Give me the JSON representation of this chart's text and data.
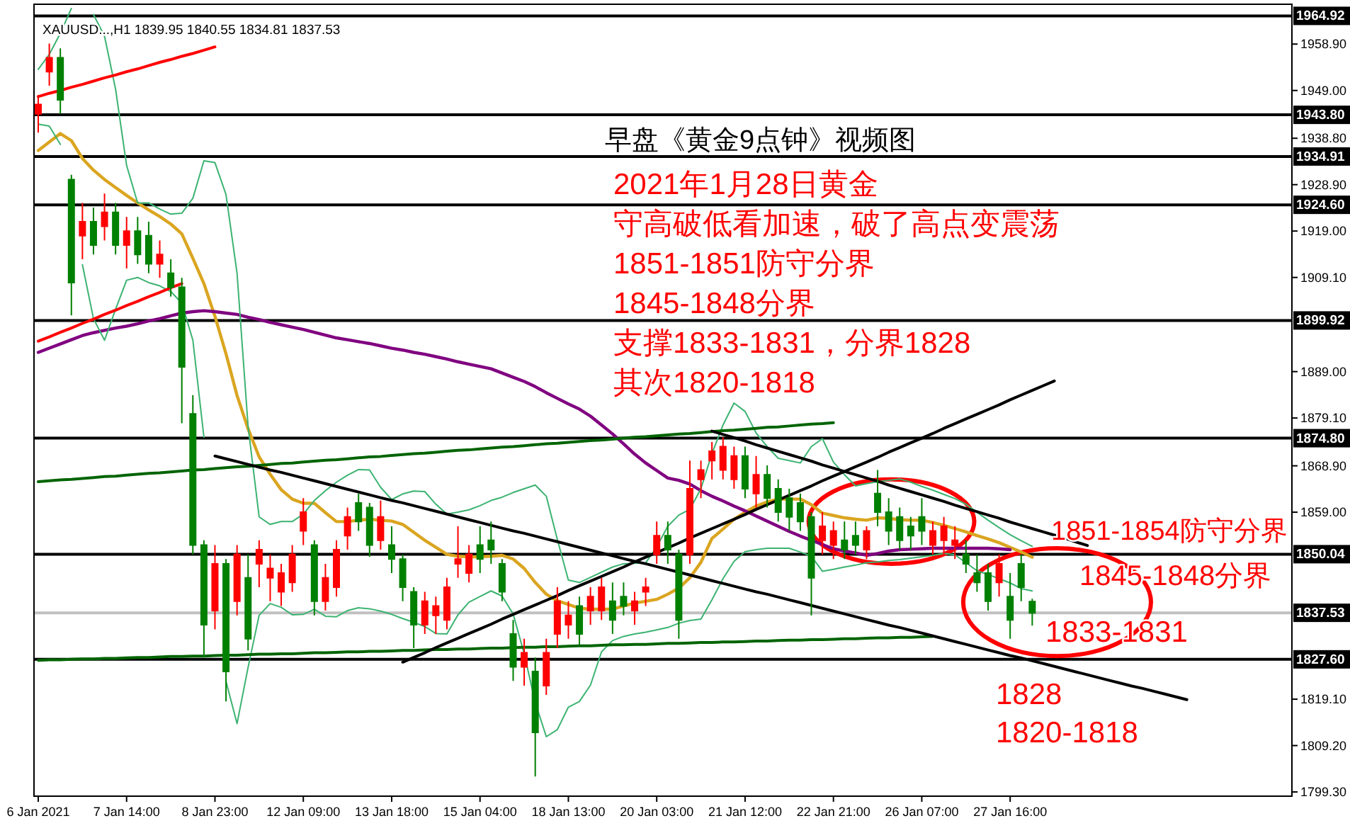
{
  "chart_data": {
    "type": "candlestick",
    "title": "早盘《黄金9点钟》视频图",
    "ylim": [
      1798.4,
      1967.4
    ],
    "categories": [
      "6 Jan 2021",
      null,
      null,
      null,
      null,
      null,
      null,
      null,
      "7 Jan 14:00",
      null,
      null,
      null,
      null,
      null,
      null,
      null,
      "8 Jan 23:00",
      null,
      null,
      null,
      null,
      null,
      null,
      null,
      "12 Jan 09:00",
      null,
      null,
      null,
      null,
      null,
      null,
      null,
      "13 Jan 18:00",
      null,
      null,
      null,
      null,
      null,
      null,
      null,
      "15 Jan 04:00",
      null,
      null,
      null,
      null,
      null,
      null,
      null,
      "18 Jan 13:00",
      null,
      null,
      null,
      null,
      null,
      null,
      null,
      "20 Jan 03:00",
      null,
      null,
      null,
      null,
      null,
      null,
      null,
      "21 Jan 12:00",
      null,
      null,
      null,
      null,
      null,
      null,
      null,
      "22 Jan 21:00",
      null,
      null,
      null,
      null,
      null,
      null,
      null,
      "26 Jan 07:00",
      null,
      null,
      null,
      null,
      null,
      null,
      null,
      "27 Jan 16:00",
      null,
      null,
      null,
      null,
      null,
      null,
      null,
      null,
      null,
      null,
      null,
      null,
      null,
      null,
      null,
      null,
      null,
      null,
      null,
      null,
      null,
      null,
      null,
      null,
      null
    ],
    "yticks": [
      {
        "value": 1799.3,
        "label": "1799.30"
      },
      {
        "value": 1809.2,
        "label": "1809.20"
      },
      {
        "value": 1819.1,
        "label": "1819.10"
      },
      {
        "value": 1859,
        "label": "1859.00"
      },
      {
        "value": 1868.9,
        "label": "1868.90"
      },
      {
        "value": 1879.1,
        "label": "1879.10"
      },
      {
        "value": 1889,
        "label": "1889.00"
      },
      {
        "value": 1909.1,
        "label": "1909.10"
      },
      {
        "value": 1919,
        "label": "1919.00"
      },
      {
        "value": 1928.9,
        "label": "1928.90"
      },
      {
        "value": 1938.8,
        "label": "1938.80"
      },
      {
        "value": 1949,
        "label": "1949.00"
      },
      {
        "value": 1958.9,
        "label": "1958.90"
      }
    ],
    "ref_lines": [
      {
        "axis": "y",
        "value": 1964.92,
        "label": "1964.92",
        "color": "#000000"
      },
      {
        "axis": "y",
        "value": 1943.8,
        "label": "1943.80",
        "color": "#000000"
      },
      {
        "axis": "y",
        "value": 1934.91,
        "label": "1934.91",
        "color": "#000000"
      },
      {
        "axis": "y",
        "value": 1924.6,
        "label": "1924.60",
        "color": "#000000"
      },
      {
        "axis": "y",
        "value": 1899.92,
        "label": "1899.92",
        "color": "#000000"
      },
      {
        "axis": "y",
        "value": 1874.8,
        "label": "1874.80",
        "color": "#000000"
      },
      {
        "axis": "y",
        "value": 1850.04,
        "label": "1850.04",
        "color": "#000000"
      },
      {
        "axis": "y",
        "value": 1827.6,
        "label": "1827.60",
        "color": "#000000"
      },
      {
        "axis": "y",
        "value": 1837.53,
        "label": "1837.53",
        "color": "#c0c0c0"
      }
    ],
    "series": [
      {
        "type": "candlestick",
        "ohlc": [
          [
            1944,
            1948,
            1940,
            1946
          ],
          [
            1953,
            1959,
            1950,
            1956
          ],
          [
            1956,
            1958,
            1944,
            1947
          ],
          [
            1930,
            1931,
            1901,
            1908
          ],
          [
            1918,
            1925,
            1913,
            1921
          ],
          [
            1921,
            1924,
            1914,
            1916
          ],
          [
            1920,
            1927,
            1917,
            1923
          ],
          [
            1923,
            1925,
            1914,
            1916
          ],
          [
            1916,
            1922,
            1911,
            1919
          ],
          [
            1919,
            1922,
            1912,
            1914
          ],
          [
            1918,
            1921,
            1910,
            1912
          ],
          [
            1912,
            1917,
            1909,
            1914
          ],
          [
            1910,
            1913,
            1905,
            1907
          ],
          [
            1907,
            1909,
            1878,
            1890
          ],
          [
            1880,
            1884,
            1850,
            1852
          ],
          [
            1852,
            1853,
            1828,
            1835
          ],
          [
            1838,
            1852,
            1834,
            1848
          ],
          [
            1848,
            1849,
            1818.6,
            1825
          ],
          [
            1840,
            1852,
            1837,
            1850
          ],
          [
            1845,
            1850,
            1829.5,
            1832
          ],
          [
            1848,
            1853,
            1843,
            1851
          ],
          [
            1845,
            1850,
            1840,
            1847
          ],
          [
            1842,
            1848,
            1839,
            1846
          ],
          [
            1844,
            1852,
            1842,
            1850
          ],
          [
            1855,
            1862,
            1852,
            1859
          ],
          [
            1852,
            1853,
            1837,
            1840
          ],
          [
            1840,
            1848,
            1838,
            1845
          ],
          [
            1843,
            1853,
            1841,
            1851
          ],
          [
            1854,
            1860,
            1851,
            1858
          ],
          [
            1861,
            1863,
            1855,
            1857
          ],
          [
            1860,
            1861,
            1849.5,
            1852
          ],
          [
            1853,
            1861.5,
            1851,
            1858
          ],
          [
            1852,
            1856,
            1846,
            1849
          ],
          [
            1849,
            1850,
            1840,
            1843
          ],
          [
            1842,
            1843,
            1830,
            1835
          ],
          [
            1835,
            1842,
            1833,
            1840
          ],
          [
            1837,
            1841,
            1833,
            1839
          ],
          [
            1836,
            1845,
            1834,
            1843
          ],
          [
            1848,
            1856,
            1845,
            1849
          ],
          [
            1846,
            1852,
            1844,
            1850
          ],
          [
            1852,
            1856,
            1846,
            1849
          ],
          [
            1853,
            1857,
            1848,
            1851
          ],
          [
            1848,
            1849,
            1840,
            1842
          ],
          [
            1833,
            1836,
            1823,
            1826
          ],
          [
            1826,
            1832,
            1822,
            1829
          ],
          [
            1825,
            1828,
            1802.6,
            1812
          ],
          [
            1822,
            1832,
            1820,
            1829
          ],
          [
            1833,
            1843,
            1830,
            1840
          ],
          [
            1835,
            1840,
            1832,
            1837
          ],
          [
            1839,
            1841,
            1830.7,
            1833
          ],
          [
            1838,
            1843,
            1835,
            1841
          ],
          [
            1838,
            1845,
            1836,
            1843
          ],
          [
            1840,
            1844,
            1833,
            1836
          ],
          [
            1841,
            1844,
            1837,
            1839
          ],
          [
            1838,
            1842,
            1835,
            1840
          ],
          [
            1842,
            1845,
            1839,
            1843
          ],
          [
            1850,
            1857,
            1848,
            1854
          ],
          [
            1854,
            1857,
            1848,
            1851
          ],
          [
            1850,
            1851,
            1832,
            1836
          ],
          [
            1850,
            1870,
            1848,
            1864
          ],
          [
            1866,
            1870,
            1862,
            1868
          ],
          [
            1870,
            1874,
            1866,
            1872
          ],
          [
            1868,
            1875,
            1866,
            1873
          ],
          [
            1866,
            1873,
            1864,
            1871
          ],
          [
            1871,
            1873,
            1862,
            1864
          ],
          [
            1863,
            1871,
            1860,
            1867
          ],
          [
            1867,
            1869,
            1860,
            1862
          ],
          [
            1864,
            1866,
            1857,
            1859
          ],
          [
            1862,
            1864,
            1855,
            1858
          ],
          [
            1861,
            1863,
            1855,
            1857
          ],
          [
            1858,
            1859,
            1837,
            1845
          ],
          [
            1853,
            1859,
            1850,
            1856
          ],
          [
            1852,
            1857,
            1849,
            1855
          ],
          [
            1853,
            1857,
            1849,
            1851
          ],
          [
            1854,
            1857,
            1850,
            1852
          ],
          [
            1851,
            1856,
            1849,
            1855
          ],
          [
            1863,
            1868,
            1856,
            1859
          ],
          [
            1859,
            1862,
            1852,
            1855
          ],
          [
            1858,
            1860,
            1851,
            1853
          ],
          [
            1856,
            1858,
            1851,
            1854
          ],
          [
            1858,
            1862,
            1852,
            1855
          ],
          [
            1852,
            1857,
            1850,
            1855
          ],
          [
            1853,
            1858,
            1850,
            1856
          ],
          [
            1852,
            1856,
            1849,
            1853
          ],
          [
            1850,
            1853,
            1846,
            1848
          ],
          [
            1846,
            1850,
            1842,
            1844
          ],
          [
            1846,
            1848,
            1838,
            1840
          ],
          [
            1844,
            1850,
            1841,
            1848
          ],
          [
            1841,
            1846,
            1832,
            1836
          ],
          [
            1848,
            1850,
            1840,
            1843
          ],
          [
            1839.95,
            1840.55,
            1834.81,
            1837.53
          ],
          null,
          null,
          null,
          null,
          null,
          null,
          null,
          null,
          null,
          null,
          null,
          null,
          null,
          null,
          null,
          null,
          null,
          null,
          null,
          null,
          null,
          null,
          null
        ],
        "colors": [
          "#ff0000",
          "#ff0000",
          "#008000",
          "#008000",
          "#ff0000",
          "#008000",
          "#ff0000",
          "#008000",
          "#ff0000",
          "#008000",
          "#008000",
          "#ff0000",
          "#008000",
          "#008000",
          "#008000",
          "#008000",
          "#ff0000",
          "#008000",
          "#ff0000",
          "#008000",
          "#ff0000",
          "#ff0000",
          "#ff0000",
          "#ff0000",
          "#ff0000",
          "#008000",
          "#ff0000",
          "#ff0000",
          "#ff0000",
          "#008000",
          "#008000",
          "#ff0000",
          "#008000",
          "#008000",
          "#008000",
          "#ff0000",
          "#ff0000",
          "#ff0000",
          "#ff0000",
          "#ff0000",
          "#008000",
          "#008000",
          "#008000",
          "#008000",
          "#ff0000",
          "#008000",
          "#ff0000",
          "#ff0000",
          "#ff0000",
          "#008000",
          "#ff0000",
          "#ff0000",
          "#008000",
          "#008000",
          "#ff0000",
          "#ff0000",
          "#ff0000",
          "#008000",
          "#008000",
          "#ff0000",
          "#ff0000",
          "#ff0000",
          "#ff0000",
          "#ff0000",
          "#008000",
          "#ff0000",
          "#008000",
          "#008000",
          "#008000",
          "#008000",
          "#008000",
          "#ff0000",
          "#ff0000",
          "#008000",
          "#008000",
          "#ff0000",
          "#008000",
          "#008000",
          "#008000",
          "#008000",
          "#008000",
          "#ff0000",
          "#ff0000",
          "#ff0000",
          "#008000",
          "#008000",
          "#008000",
          "#ff0000",
          "#008000",
          "#008000",
          "#008000",
          null,
          null,
          null,
          null,
          null,
          null,
          null,
          null,
          null,
          null,
          null,
          null,
          null,
          null,
          null,
          null,
          null,
          null,
          null,
          null,
          null,
          null,
          null
        ]
      },
      {
        "type": "line",
        "color": "#daa520",
        "values": [
          1936.2,
          1938,
          1939.8,
          1938.3,
          1934.5,
          1932,
          1930,
          1928.3,
          1926.6,
          1925,
          1923.5,
          1922.1,
          1920.5,
          1918.4,
          1913.2,
          1907.8,
          1900.8,
          1892.8,
          1883.9,
          1876.8,
          1870.8,
          1867.1,
          1863.8,
          1861.8,
          1860.9,
          1860.9,
          1858.9,
          1857,
          1857,
          1857.3,
          1857.5,
          1857.3,
          1857.1,
          1856.4,
          1854.7,
          1853,
          1851.5,
          1850,
          1849.6,
          1849.5,
          1849.5,
          1849.6,
          1849.8,
          1849,
          1847,
          1844,
          1841.5,
          1840.1,
          1839.3,
          1838.5,
          1838.3,
          1838.3,
          1838.3,
          1839,
          1839.6,
          1840,
          1840.4,
          1841.5,
          1842.8,
          1845,
          1848.3,
          1853.4,
          1855.4,
          1857.5,
          1859,
          1860.3,
          1861.2,
          1861.8,
          1861.8,
          1861.8,
          1860.6,
          1858.8,
          1858.3,
          1857.8,
          1857.5,
          1857.3,
          1857.8,
          1857.7,
          1857.4,
          1857.3,
          1857.3,
          1856.8,
          1856.2,
          1855.5,
          1854.8,
          1854,
          1853.3,
          1852.5,
          1851.5,
          1850.5,
          1849.4,
          null,
          null,
          null,
          null,
          null,
          null,
          null,
          null,
          null,
          null,
          null,
          null,
          null,
          null,
          null,
          null,
          null,
          null,
          null,
          null,
          null,
          null,
          null
        ]
      },
      {
        "type": "line",
        "color": "#800080",
        "values": [
          1893.1,
          1894,
          1894.9,
          1895.8,
          1896.7,
          1897.3,
          1897.8,
          1898.3,
          1898.7,
          1899.2,
          1899.8,
          1900.3,
          1900.9,
          1901.5,
          1901.8,
          1902,
          1901.8,
          1901.5,
          1901.2,
          1900.6,
          1900.1,
          1899.5,
          1899,
          1898.5,
          1898,
          1897.4,
          1896.8,
          1896.2,
          1895.8,
          1895.4,
          1895,
          1894.5,
          1894,
          1893.6,
          1893.1,
          1892.7,
          1892.2,
          1891.7,
          1891.1,
          1890.6,
          1890.1,
          1889.6,
          1888.7,
          1887.8,
          1886.9,
          1885.8,
          1884.5,
          1883.3,
          1882.1,
          1881,
          1879.5,
          1877.6,
          1875.7,
          1873.6,
          1871.4,
          1869.5,
          1867.9,
          1866.3,
          1865.8,
          1865,
          1863.6,
          1862.4,
          1861.4,
          1860.3,
          1859.3,
          1858.2,
          1857.1,
          1856,
          1854.9,
          1853.9,
          1853,
          1852.1,
          1851.2,
          1850.7,
          1850.3,
          1849.8,
          1850.2,
          1850.7,
          1851,
          1851.1,
          1851.2,
          1851.3,
          1851.3,
          1851.3,
          1851.3,
          1851.3,
          1851.3,
          1851.2,
          1851,
          null,
          null,
          null,
          null,
          null,
          null,
          null,
          null,
          null,
          null,
          null,
          null,
          null,
          null,
          null,
          null,
          null,
          null,
          null,
          null,
          null,
          null,
          null,
          null,
          null
        ]
      },
      {
        "type": "line",
        "color": "#3cb371",
        "values": [
          1953.5,
          1956.7,
          1961.2,
          1966.5,
          null,
          1965.2,
          1960.6,
          1949.3,
          1933,
          1925,
          1925,
          1923.7,
          1922.6,
          1922.8,
          1926,
          1934,
          1933.6,
          1926.8,
          1910,
          1877.3,
          1858,
          1856.4,
          1857,
          1857,
          1858.6,
          1861.5,
          1863.6,
          1865.4,
          1866.9,
          1868.1,
          1868,
          1864.3,
          1861.7,
          1862.9,
          1863.5,
          1863.4,
          1860.7,
          1858.6,
          1859,
          1859.5,
          1860.4,
          1861.5,
          1862.2,
          1863.2,
          1864,
          1864.8,
          1862.4,
          1853.2,
          1844.5,
          1844,
          1845.1,
          1846.2,
          1847.3,
          1848,
          1848.1,
          1848.2,
          1851.6,
          1856,
          1858.4,
          1859.6,
          1864,
          1871.5,
          1877.6,
          1882.3,
          1880.5,
          1875.9,
          1873,
          1870.5,
          1870,
          1869.5,
          1873,
          1874.7,
          1869.7,
          1867,
          1864.6,
          1865.1,
          1865.5,
          1865.8,
          1866.1,
          1865.4,
          1864.5,
          1863.7,
          1862.8,
          1861.9,
          1860.7,
          1859,
          1857.3,
          1855.7,
          1854.2,
          1852.9,
          1851.7,
          null,
          null,
          null,
          null,
          null,
          null,
          null,
          null,
          null,
          null,
          null,
          null,
          null,
          null,
          null,
          null,
          null,
          null,
          null,
          null,
          null,
          null,
          null
        ]
      },
      {
        "type": "line",
        "color": "#3cb371",
        "values": [
          1941.8,
          1941.4,
          1937.5,
          null,
          1911.8,
          1900.3,
          1895.7,
          1902.3,
          1908.5,
          1909.1,
          1908,
          1907.3,
          1906.1,
          1903.6,
          1895.7,
          1875,
          null,
          1822.9,
          1813.9,
          1825.9,
          1837,
          1839.5,
          1838.7,
          1837.1,
          1837.2,
          1838.3,
          1836.8,
          1836.7,
          1838,
          1838.6,
          1838.4,
          1837.9,
          1837.2,
          1836.3,
          1835.5,
          1834.6,
          1833.1,
          1833,
          1837.1,
          1839.8,
          1841,
          1842.2,
          1841.1,
          1837.3,
          1828.8,
          1818.4,
          1811.1,
          1812.6,
          1817.4,
          1818.6,
          1822.1,
          1829.2,
          1831.6,
          1832.5,
          1833,
          1833.4,
          1833.9,
          1834.4,
          1835.3,
          1835.9,
          1836.2,
          1840.3,
          1844.8,
          1848.5,
          1850.6,
          1851,
          1851.3,
          1851.3,
          1851.3,
          1850.5,
          1849.6,
          1846.4,
          1846.8,
          1847.3,
          1847.7,
          1848.2,
          1848.4,
          1848.7,
          1848.9,
          1849.2,
          1849.5,
          1849.8,
          1850.2,
          1849.9,
          1848.2,
          1846.5,
          1845.7,
          1844.8,
          1843.9,
          1842.7,
          1842.2,
          null,
          null,
          null,
          null,
          null,
          null,
          null,
          null,
          null,
          null,
          null,
          null,
          null,
          null,
          null,
          null,
          null,
          null,
          null,
          null,
          null,
          null,
          null
        ]
      },
      {
        "type": "line",
        "color": "#ff0000",
        "values": [
          1947.7,
          1948.4,
          1949.0,
          1949.7,
          1950.3,
          1951.0,
          1951.7,
          1952.3,
          1953.0,
          1953.6,
          1954.3,
          1955.0,
          1955.6,
          1956.3,
          1956.9,
          1957.6,
          1958.3,
          null,
          null,
          null,
          null,
          null,
          null,
          null,
          null,
          null,
          null,
          null,
          null,
          null,
          null,
          null,
          null,
          null,
          null,
          null,
          null,
          null,
          null,
          null,
          null,
          null,
          null,
          null,
          null,
          null,
          null,
          null,
          null,
          null,
          null,
          null,
          null,
          null,
          null,
          null,
          null,
          null,
          null,
          null,
          null,
          null,
          null,
          null,
          null,
          null,
          null,
          null,
          null,
          null,
          null,
          null,
          null,
          null,
          null,
          null,
          null,
          null,
          null,
          null,
          null,
          null,
          null,
          null,
          null,
          null,
          null,
          null,
          null,
          null,
          null,
          null,
          null,
          null,
          null,
          null,
          null,
          null,
          null,
          null,
          null,
          null,
          null,
          null,
          null,
          null,
          null,
          null,
          null,
          null,
          null,
          null,
          null,
          null
        ]
      },
      {
        "type": "line",
        "color": "#ff0000",
        "values": [
          1895.5,
          1896.4,
          1897.4,
          1898.3,
          1899.3,
          1900.2,
          1901.2,
          1902.1,
          1903.1,
          1904.0,
          1905.0,
          1905.9,
          1906.9,
          1907.8,
          null,
          null,
          null,
          null,
          null,
          null,
          null,
          null,
          null,
          null,
          null,
          null,
          null,
          null,
          null,
          null,
          null,
          null,
          null,
          null,
          null,
          null,
          null,
          null,
          null,
          null,
          null,
          null,
          null,
          null,
          null,
          null,
          null,
          null,
          null,
          null,
          null,
          null,
          null,
          null,
          null,
          null,
          null,
          null,
          null,
          null,
          null,
          null,
          null,
          null,
          null,
          null,
          null,
          null,
          null,
          null,
          null,
          null,
          null,
          null,
          null,
          null,
          null,
          null,
          null,
          null,
          null,
          null,
          null,
          null,
          null,
          null,
          null,
          null,
          null,
          null,
          null,
          null,
          null,
          null,
          null,
          null,
          null,
          null,
          null,
          null,
          null,
          null,
          null,
          null,
          null,
          null,
          null,
          null,
          null,
          null,
          null,
          null,
          null,
          null
        ]
      },
      {
        "type": "line",
        "color": "#006400",
        "values": [
          1865.5,
          1865.7,
          1865.9,
          1866.0,
          1866.2,
          1866.4,
          1866.6,
          1866.7,
          1866.9,
          1867.1,
          1867.3,
          1867.4,
          1867.6,
          1867.8,
          1868.0,
          1868.1,
          1868.3,
          1868.5,
          1868.7,
          1868.8,
          1869.0,
          1869.2,
          1869.4,
          1869.5,
          1869.7,
          1869.9,
          1870.1,
          1870.2,
          1870.4,
          1870.6,
          1870.8,
          1870.9,
          1871.1,
          1871.3,
          1871.5,
          1871.6,
          1871.8,
          1872.0,
          1872.2,
          1872.3,
          1872.5,
          1872.7,
          1872.9,
          1873.0,
          1873.2,
          1873.4,
          1873.6,
          1873.7,
          1873.9,
          1874.1,
          1874.3,
          1874.4,
          1874.6,
          1874.8,
          1875.0,
          1875.1,
          1875.3,
          1875.5,
          1875.7,
          1875.8,
          1876.0,
          1876.2,
          1876.4,
          1876.5,
          1876.7,
          1876.9,
          1877.1,
          1877.2,
          1877.4,
          1877.6,
          1877.8,
          1877.9,
          1878.1,
          null,
          null,
          null,
          null,
          null,
          null,
          null,
          null,
          null,
          null,
          null,
          null,
          null,
          null,
          null,
          null,
          null,
          null,
          null,
          null,
          null,
          null,
          null,
          null,
          null,
          null,
          null,
          null,
          null,
          null,
          null,
          null,
          null,
          null,
          null,
          null,
          null,
          null,
          null,
          null,
          null
        ]
      },
      {
        "type": "line",
        "color": "#006400",
        "values": [
          1827.4,
          1827.5,
          1827.5,
          1827.6,
          1827.7,
          1827.7,
          1827.8,
          1827.8,
          1827.9,
          1828.0,
          1828.0,
          1828.1,
          1828.2,
          1828.2,
          1828.3,
          1828.3,
          1828.4,
          1828.5,
          1828.5,
          1828.6,
          1828.7,
          1828.7,
          1828.8,
          1828.8,
          1828.9,
          1829.0,
          1829.0,
          1829.1,
          1829.2,
          1829.2,
          1829.3,
          1829.3,
          1829.4,
          1829.5,
          1829.5,
          1829.6,
          1829.7,
          1829.7,
          1829.8,
          1829.8,
          1829.9,
          1830.0,
          1830.0,
          1830.1,
          1830.2,
          1830.2,
          1830.3,
          1830.3,
          1830.4,
          1830.5,
          1830.5,
          1830.6,
          1830.7,
          1830.7,
          1830.8,
          1830.8,
          1830.9,
          1831.0,
          1831.0,
          1831.1,
          1831.2,
          1831.2,
          1831.3,
          1831.3,
          1831.4,
          1831.5,
          1831.5,
          1831.6,
          1831.7,
          1831.7,
          1831.8,
          1831.8,
          1831.9,
          1832.0,
          1832.0,
          1832.1,
          1832.2,
          1832.2,
          1832.3,
          1832.3,
          1832.4,
          1832.5,
          null,
          null,
          null,
          null,
          null,
          null,
          null,
          null,
          null,
          null,
          null,
          null,
          null,
          null,
          null,
          null,
          null,
          null,
          null,
          null,
          null,
          null,
          null,
          null,
          null,
          null,
          null,
          null,
          null,
          null,
          null,
          null
        ]
      },
      {
        "type": "line",
        "color": "#000000",
        "values": [
          null,
          null,
          null,
          null,
          null,
          null,
          null,
          null,
          null,
          null,
          null,
          null,
          null,
          null,
          null,
          null,
          1871.0,
          1870.4,
          1869.8,
          1869.2,
          1868.6,
          1868.0,
          1867.5,
          1866.9,
          1866.3,
          1865.7,
          1865.1,
          1864.5,
          1863.9,
          1863.3,
          1862.7,
          1862.1,
          1861.5,
          1861.0,
          1860.4,
          1859.8,
          1859.2,
          1858.6,
          1858.0,
          1857.4,
          1856.8,
          1856.2,
          1855.6,
          1855.0,
          1854.5,
          1853.9,
          1853.3,
          1852.7,
          1852.1,
          1851.5,
          1850.9,
          1850.3,
          1849.7,
          1849.1,
          1848.5,
          1848.0,
          1847.4,
          1846.8,
          1846.2,
          1845.6,
          1845.0,
          1844.4,
          1843.8,
          1843.2,
          1842.6,
          1842.0,
          1841.5,
          1840.9,
          1840.3,
          1839.7,
          1839.1,
          1838.5,
          1837.9,
          1837.3,
          1836.7,
          1836.1,
          1835.5,
          1834.9,
          1834.4,
          1833.8,
          1833.2,
          1832.6,
          1832.0,
          1831.4,
          1830.8,
          1830.2,
          1829.6,
          1829.0,
          1828.4,
          1827.9,
          1827.3,
          1826.7,
          1826.1,
          1825.5,
          1824.9,
          1824.3,
          1823.7,
          1823.1,
          1822.5,
          1821.9,
          1821.4,
          1820.8,
          1820.2,
          1819.6,
          1819.0,
          null,
          null,
          null,
          null,
          null,
          null,
          null,
          null,
          null
        ]
      },
      {
        "type": "line",
        "color": "#000000",
        "values": [
          null,
          null,
          null,
          null,
          null,
          null,
          null,
          null,
          null,
          null,
          null,
          null,
          null,
          null,
          null,
          null,
          null,
          null,
          null,
          null,
          null,
          null,
          null,
          null,
          null,
          null,
          null,
          null,
          null,
          null,
          null,
          null,
          null,
          1827.0,
          1828.0,
          1829.0,
          1830.1,
          1831.1,
          1832.1,
          1833.1,
          1834.1,
          1835.1,
          1836.2,
          1837.2,
          1838.2,
          1839.2,
          1840.2,
          1841.2,
          1842.3,
          1843.3,
          1844.3,
          1845.3,
          1846.3,
          1847.3,
          1848.4,
          1849.4,
          1850.4,
          1851.4,
          1852.4,
          1853.5,
          1854.5,
          1855.5,
          1856.5,
          1857.5,
          1858.5,
          1859.6,
          1860.6,
          1861.6,
          1862.6,
          1863.6,
          1864.6,
          1865.7,
          1866.7,
          1867.7,
          1868.7,
          1869.7,
          1870.7,
          1871.8,
          1872.8,
          1873.8,
          1874.8,
          1875.8,
          1876.9,
          1877.9,
          1878.9,
          1879.9,
          1880.9,
          1881.9,
          1883.0,
          1884.0,
          1885.0,
          1886.0,
          1887.0,
          null,
          null,
          null,
          null,
          null,
          null,
          null,
          null,
          null,
          null,
          null,
          null,
          null,
          null,
          null,
          null,
          null,
          null,
          null,
          null,
          null
        ]
      },
      {
        "type": "line",
        "color": "#000000",
        "values": [
          null,
          null,
          null,
          null,
          null,
          null,
          null,
          null,
          null,
          null,
          null,
          null,
          null,
          null,
          null,
          null,
          null,
          null,
          null,
          null,
          null,
          null,
          null,
          null,
          null,
          null,
          null,
          null,
          null,
          null,
          null,
          null,
          null,
          null,
          null,
          null,
          null,
          null,
          null,
          null,
          null,
          null,
          null,
          null,
          null,
          null,
          null,
          null,
          null,
          null,
          null,
          null,
          null,
          null,
          null,
          null,
          null,
          null,
          null,
          null,
          null,
          1876.3,
          1875.6,
          1874.9,
          1874.2,
          1873.4,
          1872.7,
          1872.0,
          1871.3,
          1870.6,
          1869.9,
          1869.1,
          1868.4,
          1867.7,
          1867.0,
          1866.3,
          1865.6,
          1864.8,
          1864.1,
          1863.4,
          1862.7,
          1862.0,
          1861.3,
          1860.5,
          1859.8,
          1859.1,
          1858.4,
          1857.7,
          1856.9,
          1856.2,
          1855.5,
          1854.8,
          1854.1,
          1853.4,
          1852.6,
          1851.9,
          null,
          null,
          null,
          null,
          null,
          null,
          null,
          null,
          null,
          null,
          null,
          null,
          null,
          null,
          null,
          null,
          null,
          null
        ]
      }
    ],
    "annotations": [
      "XAUUSD...,H1  1839.95 1840.55 1834.81 1837.53",
      "2021年1月28日黄金",
      "守高破低看加速，破了高点变震荡",
      "1851-1851防守分界",
      "1845-1848分界",
      "支撑1833-1831，分界1828",
      "其次1820-1818",
      "1851-1854防守分界",
      "1845-1848分界",
      "1833-1831",
      "1828",
      "1820-1818"
    ]
  }
}
